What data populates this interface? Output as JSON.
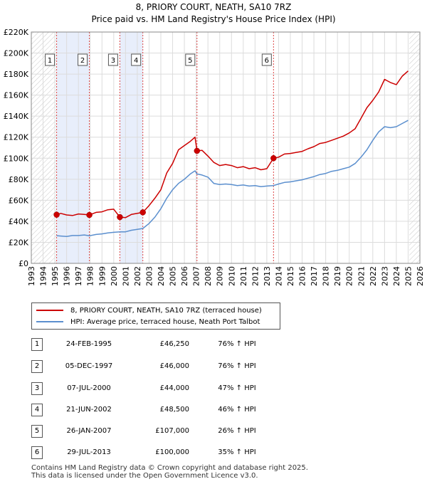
{
  "title_line1": "8, PRIORY COURT, NEATH, SA10 7RZ",
  "title_line2": "Price paid vs. HM Land Registry's House Price Index (HPI)",
  "legend": {
    "property_label": "8, PRIORY COURT, NEATH, SA10 7RZ (terraced house)",
    "hpi_label": "HPI: Average price, terraced house, Neath Port Talbot",
    "property_color": "#cc0000",
    "hpi_color": "#5b8fce"
  },
  "transactions": [
    {
      "num": "1",
      "date": "24-FEB-1995",
      "price": "£46,250",
      "hpi": "76% ↑ HPI"
    },
    {
      "num": "2",
      "date": "05-DEC-1997",
      "price": "£46,000",
      "hpi": "76% ↑ HPI"
    },
    {
      "num": "3",
      "date": "07-JUL-2000",
      "price": "£44,000",
      "hpi": "47% ↑ HPI"
    },
    {
      "num": "4",
      "date": "21-JUN-2002",
      "price": "£48,500",
      "hpi": "46% ↑ HPI"
    },
    {
      "num": "5",
      "date": "26-JAN-2007",
      "price": "£107,000",
      "hpi": "26% ↑ HPI"
    },
    {
      "num": "6",
      "date": "29-JUL-2013",
      "price": "£100,000",
      "hpi": "35% ↑ HPI"
    }
  ],
  "footer_line1": "Contains HM Land Registry data © Crown copyright and database right 2025.",
  "footer_line2": "This data is licensed under the Open Government Licence v3.0.",
  "chart_data": {
    "type": "line",
    "title": "8, PRIORY COURT, NEATH, SA10 7RZ — Price paid vs. HM Land Registry's House Price Index (HPI)",
    "xlabel": "",
    "ylabel": "",
    "xlim": [
      1993,
      2026
    ],
    "ylim": [
      0,
      220000
    ],
    "x_ticks": [
      1993,
      1994,
      1995,
      1996,
      1997,
      1998,
      1999,
      2000,
      2001,
      2002,
      2003,
      2004,
      2005,
      2006,
      2007,
      2008,
      2009,
      2010,
      2011,
      2012,
      2013,
      2014,
      2015,
      2016,
      2017,
      2018,
      2019,
      2020,
      2021,
      2022,
      2023,
      2024,
      2025,
      2026
    ],
    "y_ticks": [
      0,
      20000,
      40000,
      60000,
      80000,
      100000,
      120000,
      140000,
      160000,
      180000,
      200000,
      220000
    ],
    "y_tick_labels": [
      "£0",
      "£20K",
      "£40K",
      "£60K",
      "£80K",
      "£100K",
      "£120K",
      "£140K",
      "£160K",
      "£180K",
      "£200K",
      "£220K"
    ],
    "grid": true,
    "shaded_ranges": [
      [
        1995.15,
        1997.93
      ],
      [
        2000.52,
        2002.47
      ]
    ],
    "hatched_ranges": [
      [
        1993.0,
        1995.15
      ],
      [
        2025.1,
        2026.0
      ]
    ],
    "series": [
      {
        "name": "8, PRIORY COURT, NEATH, SA10 7RZ (terraced house)",
        "color": "#cc0000",
        "x": [
          1995.15,
          1995.5,
          1996.0,
          1996.5,
          1997.0,
          1997.5,
          1997.93,
          1998.5,
          1999.0,
          1999.5,
          2000.0,
          2000.52,
          2001.0,
          2001.5,
          2002.0,
          2002.47,
          2003.0,
          2003.5,
          2004.0,
          2004.5,
          2005.0,
          2005.5,
          2006.0,
          2006.5,
          2006.9,
          2007.07,
          2007.5,
          2008.0,
          2008.5,
          2009.0,
          2009.5,
          2010.0,
          2010.5,
          2011.0,
          2011.5,
          2012.0,
          2012.5,
          2013.0,
          2013.57,
          2014.0,
          2014.5,
          2015.0,
          2015.5,
          2016.0,
          2016.5,
          2017.0,
          2017.5,
          2018.0,
          2018.5,
          2019.0,
          2019.5,
          2020.0,
          2020.5,
          2021.0,
          2021.5,
          2022.0,
          2022.5,
          2023.0,
          2023.5,
          2024.0,
          2024.5,
          2025.0
        ],
        "values": [
          46250,
          47500,
          46000,
          45500,
          47000,
          46500,
          46000,
          48500,
          49000,
          51000,
          51500,
          44000,
          43500,
          46500,
          47500,
          48500,
          55000,
          62000,
          70000,
          86000,
          95000,
          108000,
          112000,
          116000,
          120000,
          107000,
          107500,
          102000,
          96000,
          93000,
          94000,
          93000,
          91000,
          92000,
          90000,
          91000,
          89000,
          90000,
          100000,
          101000,
          104000,
          104500,
          105500,
          106500,
          109000,
          111000,
          114000,
          115000,
          117000,
          119000,
          121000,
          124000,
          128000,
          138000,
          148000,
          155000,
          163000,
          175000,
          172000,
          170000,
          178000,
          183000
        ]
      },
      {
        "name": "HPI: Average price, terraced house, Neath Port Talbot",
        "color": "#5b8fce",
        "x": [
          1995.15,
          1995.5,
          1996.0,
          1996.5,
          1997.0,
          1997.5,
          1997.93,
          1998.5,
          1999.0,
          1999.5,
          2000.0,
          2000.52,
          2001.0,
          2001.5,
          2002.0,
          2002.47,
          2003.0,
          2003.5,
          2004.0,
          2004.5,
          2005.0,
          2005.5,
          2006.0,
          2006.5,
          2006.9,
          2007.07,
          2007.5,
          2008.0,
          2008.5,
          2009.0,
          2009.5,
          2010.0,
          2010.5,
          2011.0,
          2011.5,
          2012.0,
          2012.5,
          2013.0,
          2013.57,
          2014.0,
          2014.5,
          2015.0,
          2015.5,
          2016.0,
          2016.5,
          2017.0,
          2017.5,
          2018.0,
          2018.5,
          2019.0,
          2019.5,
          2020.0,
          2020.5,
          2021.0,
          2021.5,
          2022.0,
          2022.5,
          2023.0,
          2023.5,
          2024.0,
          2024.5,
          2025.0
        ],
        "values": [
          26300,
          26000,
          25500,
          26500,
          26500,
          27000,
          26200,
          27500,
          28000,
          29000,
          29500,
          29900,
          30000,
          31500,
          32300,
          33200,
          38000,
          44000,
          52000,
          62000,
          70000,
          76000,
          80000,
          85000,
          88000,
          85000,
          84000,
          82000,
          76000,
          75000,
          75500,
          75000,
          74000,
          74500,
          73500,
          74000,
          73000,
          73500,
          74000,
          75500,
          77000,
          77500,
          78500,
          79500,
          81000,
          82500,
          84500,
          85500,
          87500,
          88500,
          90000,
          91500,
          95000,
          101000,
          108000,
          117000,
          125000,
          130000,
          129000,
          130000,
          133000,
          136000
        ]
      }
    ],
    "sale_points": [
      {
        "label": "1",
        "x": 1995.15,
        "value": 46250
      },
      {
        "label": "2",
        "x": 1997.93,
        "value": 46000
      },
      {
        "label": "3",
        "x": 2000.52,
        "value": 44000
      },
      {
        "label": "4",
        "x": 2002.47,
        "value": 48500
      },
      {
        "label": "5",
        "x": 2007.07,
        "value": 107000
      },
      {
        "label": "6",
        "x": 2013.57,
        "value": 100000
      }
    ]
  }
}
